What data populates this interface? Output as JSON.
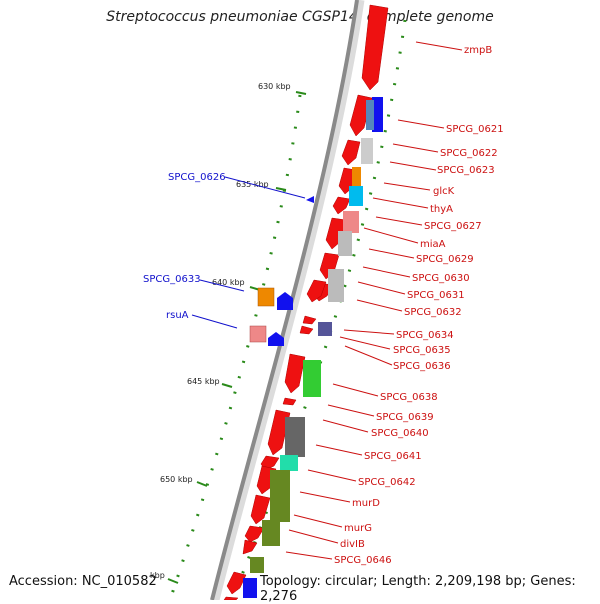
{
  "title": "Streptococcus pneumoniae CGSP14, complete genome",
  "accession_label": "Accession: NC_010582",
  "topology_label": "Topology: circular; Length: 2,209,198 bp; Genes: 2,276",
  "colors": {
    "forward": "#ee1111",
    "label_right": "#cc1111",
    "label_left": "#1111cc",
    "backbone": "#8a8a8a",
    "gc_tick": "#2a8a1a"
  },
  "ticks": [
    {
      "label": "630 kbp"
    },
    {
      "label": "635 kbp"
    },
    {
      "label": "640 kbp"
    },
    {
      "label": "645 kbp"
    },
    {
      "label": "650 kbp"
    },
    {
      "label": "kbp"
    }
  ],
  "genes_right": [
    {
      "label": "zmpB"
    },
    {
      "label": "SPCG_0621"
    },
    {
      "label": "SPCG_0622"
    },
    {
      "label": "SPCG_0623"
    },
    {
      "label": "glcK"
    },
    {
      "label": "thyA"
    },
    {
      "label": "SPCG_0627"
    },
    {
      "label": "miaA"
    },
    {
      "label": "SPCG_0629"
    },
    {
      "label": "SPCG_0630"
    },
    {
      "label": "SPCG_0631"
    },
    {
      "label": "SPCG_0632"
    },
    {
      "label": "SPCG_0634"
    },
    {
      "label": "SPCG_0635"
    },
    {
      "label": "SPCG_0636"
    },
    {
      "label": "SPCG_0638"
    },
    {
      "label": "SPCG_0639"
    },
    {
      "label": "SPCG_0640"
    },
    {
      "label": "SPCG_0641"
    },
    {
      "label": "SPCG_0642"
    },
    {
      "label": "murD"
    },
    {
      "label": "murG"
    },
    {
      "label": "divIB"
    },
    {
      "label": "SPCG_0646"
    }
  ],
  "genes_left": [
    {
      "label": "SPCG_0626"
    },
    {
      "label": "SPCG_0633"
    },
    {
      "label": "rsuA"
    }
  ]
}
